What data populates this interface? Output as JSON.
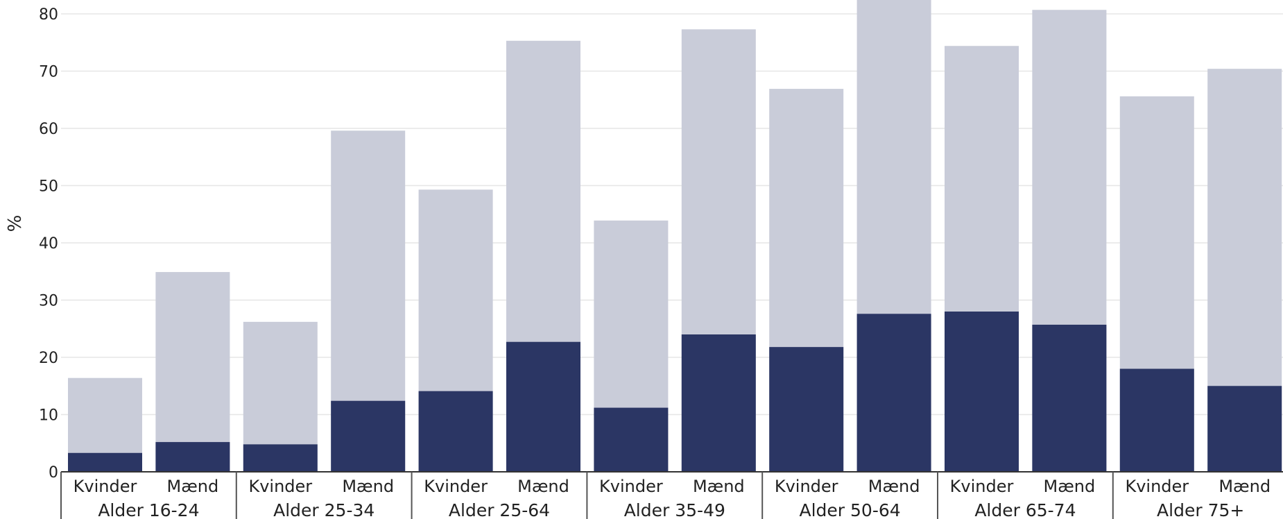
{
  "chart_data": {
    "type": "bar",
    "stacked": "overlay",
    "ylabel": "%",
    "ylim": [
      0,
      80
    ],
    "yticks": [
      0,
      10,
      20,
      30,
      40,
      50,
      60,
      70,
      80
    ],
    "grid": true,
    "groups": [
      "Alder 16-24",
      "Alder 25-34",
      "Alder 25-64",
      "Alder 35-49",
      "Alder 50-64",
      "Alder 65-74",
      "Alder 75+"
    ],
    "subcategories": [
      "Kvinder",
      "Mænd"
    ],
    "series": [
      {
        "color": "#C9CCD9",
        "values": [
          16.4,
          34.9,
          26.2,
          59.6,
          49.3,
          75.3,
          43.9,
          77.3,
          66.9,
          84.0,
          74.4,
          80.7,
          65.6,
          70.4
        ]
      },
      {
        "color": "#2B3664",
        "values": [
          3.3,
          5.2,
          4.8,
          12.4,
          14.1,
          22.7,
          11.2,
          24.0,
          21.8,
          27.6,
          28.0,
          25.7,
          18.0,
          15.0
        ]
      }
    ]
  }
}
